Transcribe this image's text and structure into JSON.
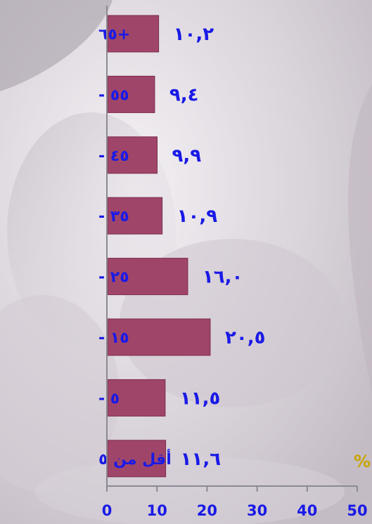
{
  "chart_data": {
    "type": "bar",
    "orientation": "horizontal",
    "categories": [
      "+٦٥",
      "٥٥ -",
      "٤٥ -",
      "٣٥ -",
      "٢٥ -",
      "١٥ -",
      "٥ -",
      "أقل من ٥"
    ],
    "values": [
      10.2,
      9.4,
      9.9,
      10.9,
      16.0,
      20.5,
      11.5,
      11.6
    ],
    "value_labels": [
      "١٠,٢",
      "٩,٤",
      "٩,٩",
      "١٠,٩",
      "١٦,٠",
      "٢٠,٥",
      "١١,٥",
      "١١,٦"
    ],
    "x_ticks": [
      "0",
      "10",
      "20",
      "30",
      "40",
      "50"
    ],
    "xlim": [
      0,
      50
    ],
    "unit_label": "%",
    "title": "",
    "xlabel": "",
    "ylabel": "",
    "grid": false,
    "colors": {
      "bar": "#a0456a",
      "bar_edge": "#7a2c4e",
      "text": "#1a1ae6",
      "unit": "#c8a400",
      "axis": "#8a8a92"
    }
  }
}
